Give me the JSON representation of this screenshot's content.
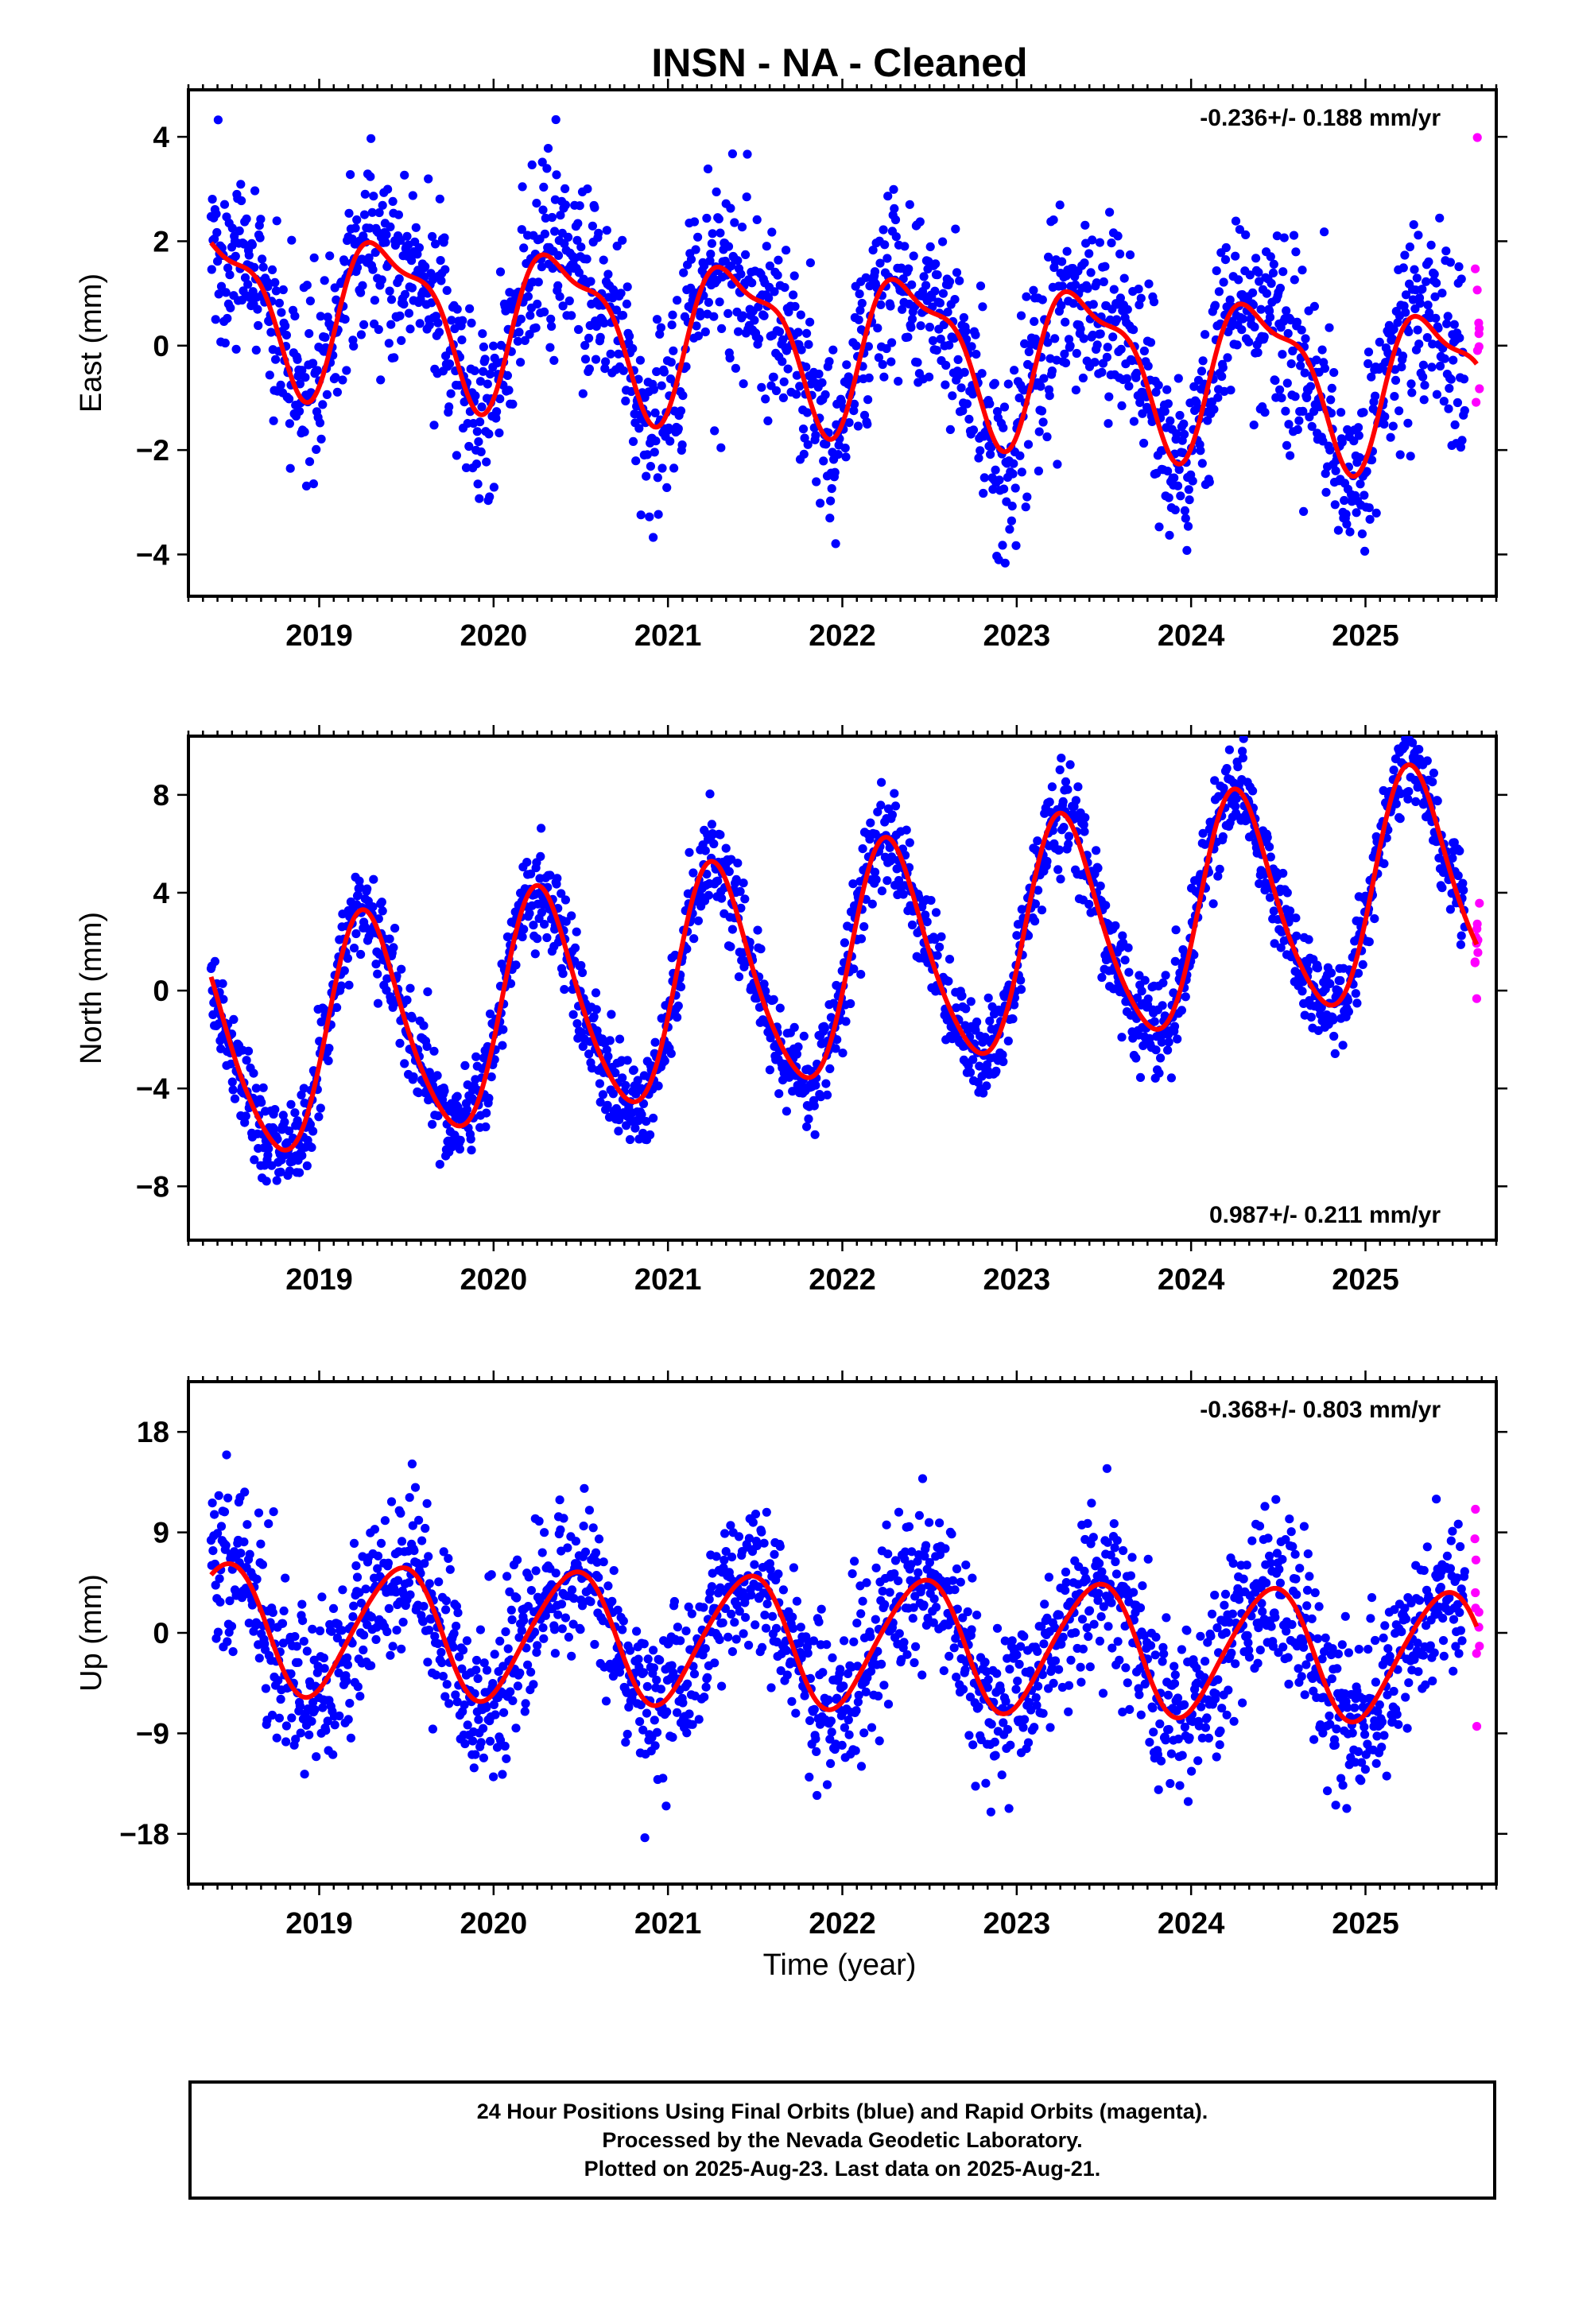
{
  "figure": {
    "title": "INSN  - NA - Cleaned",
    "xlabel": "Time (year)",
    "colors": {
      "final": "#0000ff",
      "rapid": "#ff00ff",
      "fit": "#ff0000",
      "axis": "#000000"
    }
  },
  "chart_data": [
    {
      "type": "scatter",
      "name": "east",
      "ylabel": "East (mm)",
      "rate": "-0.236+/- 0.188 mm/yr",
      "xlim": [
        2018.25,
        2025.75
      ],
      "ylim": [
        -4.8,
        4.9
      ],
      "xticks": [
        2019,
        2020,
        2021,
        2022,
        2023,
        2024,
        2025
      ],
      "yticks": [
        -4,
        -2,
        0,
        2,
        4
      ],
      "ytick_labels": [
        "−4",
        "−2",
        "0",
        "2",
        "4"
      ],
      "grid": false,
      "start": 2018.38,
      "end_final": 2025.57,
      "end_rapid": 2025.64,
      "fit": {
        "offset": 0.9,
        "trend": -0.236,
        "ref_year": 2018.38,
        "annual_amp": 1.4,
        "annual_phase": 0.4,
        "semiannual_amp": 0.5,
        "semiannual_phase": 0.7
      },
      "scatter_sd": 0.9,
      "series": [
        {
          "name": "Final Orbits",
          "color": "#0000ff"
        },
        {
          "name": "Rapid Orbits",
          "color": "#ff00ff"
        },
        {
          "name": "Fit",
          "color": "#ff0000"
        }
      ]
    },
    {
      "type": "scatter",
      "name": "north",
      "ylabel": "North (mm)",
      "rate": "0.987+/- 0.211 mm/yr",
      "xlim": [
        2018.25,
        2025.75
      ],
      "ylim": [
        -10.2,
        10.4
      ],
      "xticks": [
        2019,
        2020,
        2021,
        2022,
        2023,
        2024,
        2025
      ],
      "yticks": [
        -8,
        -4,
        0,
        4,
        8
      ],
      "ytick_labels": [
        "−8",
        "−4",
        "0",
        "4",
        "8"
      ],
      "grid": false,
      "start": 2018.38,
      "end_final": 2025.57,
      "end_rapid": 2025.64,
      "fit": {
        "offset": -2.6,
        "trend": 0.987,
        "ref_year": 2018.38,
        "annual_amp": 4.6,
        "annual_phase": 0.27,
        "semiannual_amp": 0.6,
        "semiannual_phase": 0.2
      },
      "scatter_sd": 1.0,
      "series": [
        {
          "name": "Final Orbits",
          "color": "#0000ff"
        },
        {
          "name": "Rapid Orbits",
          "color": "#ff00ff"
        },
        {
          "name": "Fit",
          "color": "#ff0000"
        }
      ]
    },
    {
      "type": "scatter",
      "name": "up",
      "ylabel": "Up (mm)",
      "rate": "-0.368+/- 0.803 mm/yr",
      "xlim": [
        2018.25,
        2025.75
      ],
      "ylim": [
        -22.5,
        22.5
      ],
      "xticks": [
        2019,
        2020,
        2021,
        2022,
        2023,
        2024,
        2025
      ],
      "yticks": [
        -18,
        -9,
        0,
        9,
        18
      ],
      "ytick_labels": [
        "−18",
        "−9",
        "0",
        "9",
        "18"
      ],
      "grid": false,
      "start": 2018.38,
      "end_final": 2025.57,
      "end_rapid": 2025.64,
      "fit": {
        "offset": 0.5,
        "trend": -0.368,
        "ref_year": 2018.38,
        "annual_amp": 5.8,
        "annual_phase": 0.45,
        "semiannual_amp": 0.6,
        "semiannual_phase": 0.6
      },
      "scatter_sd": 3.6,
      "series": [
        {
          "name": "Final Orbits",
          "color": "#0000ff"
        },
        {
          "name": "Rapid Orbits",
          "color": "#ff00ff"
        },
        {
          "name": "Fit",
          "color": "#ff0000"
        }
      ]
    }
  ],
  "footer": {
    "line1": "24 Hour Positions Using Final Orbits (blue) and Rapid Orbits (magenta).",
    "line2": "Processed by the Nevada Geodetic Laboratory.",
    "line3": "Plotted on 2025-Aug-23. Last data on 2025-Aug-21."
  }
}
